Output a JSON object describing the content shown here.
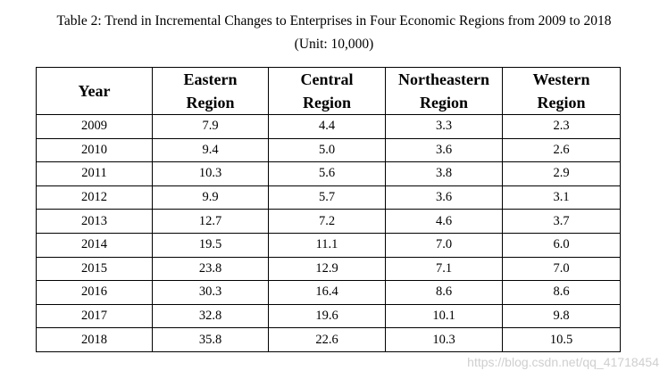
{
  "title": "Table 2: Trend in Incremental Changes to Enterprises in Four Economic Regions from 2009 to 2018",
  "subtitle": "(Unit: 10,000)",
  "columns": [
    {
      "line1": "Year",
      "line2": ""
    },
    {
      "line1": "Eastern",
      "line2": "Region"
    },
    {
      "line1": "Central",
      "line2": "Region"
    },
    {
      "line1": "Northeastern",
      "line2": "Region"
    },
    {
      "line1": "Western",
      "line2": "Region"
    }
  ],
  "rows": [
    [
      "2009",
      "7.9",
      "4.4",
      "3.3",
      "2.3"
    ],
    [
      "2010",
      "9.4",
      "5.0",
      "3.6",
      "2.6"
    ],
    [
      "2011",
      "10.3",
      "5.6",
      "3.8",
      "2.9"
    ],
    [
      "2012",
      "9.9",
      "5.7",
      "3.6",
      "3.1"
    ],
    [
      "2013",
      "12.7",
      "7.2",
      "4.6",
      "3.7"
    ],
    [
      "2014",
      "19.5",
      "11.1",
      "7.0",
      "6.0"
    ],
    [
      "2015",
      "23.8",
      "12.9",
      "7.1",
      "7.0"
    ],
    [
      "2016",
      "30.3",
      "16.4",
      "8.6",
      "8.6"
    ],
    [
      "2017",
      "32.8",
      "19.6",
      "10.1",
      "9.8"
    ],
    [
      "2018",
      "35.8",
      "22.6",
      "10.3",
      "10.5"
    ]
  ],
  "watermark": "https://blog.csdn.net/qq_41718454"
}
